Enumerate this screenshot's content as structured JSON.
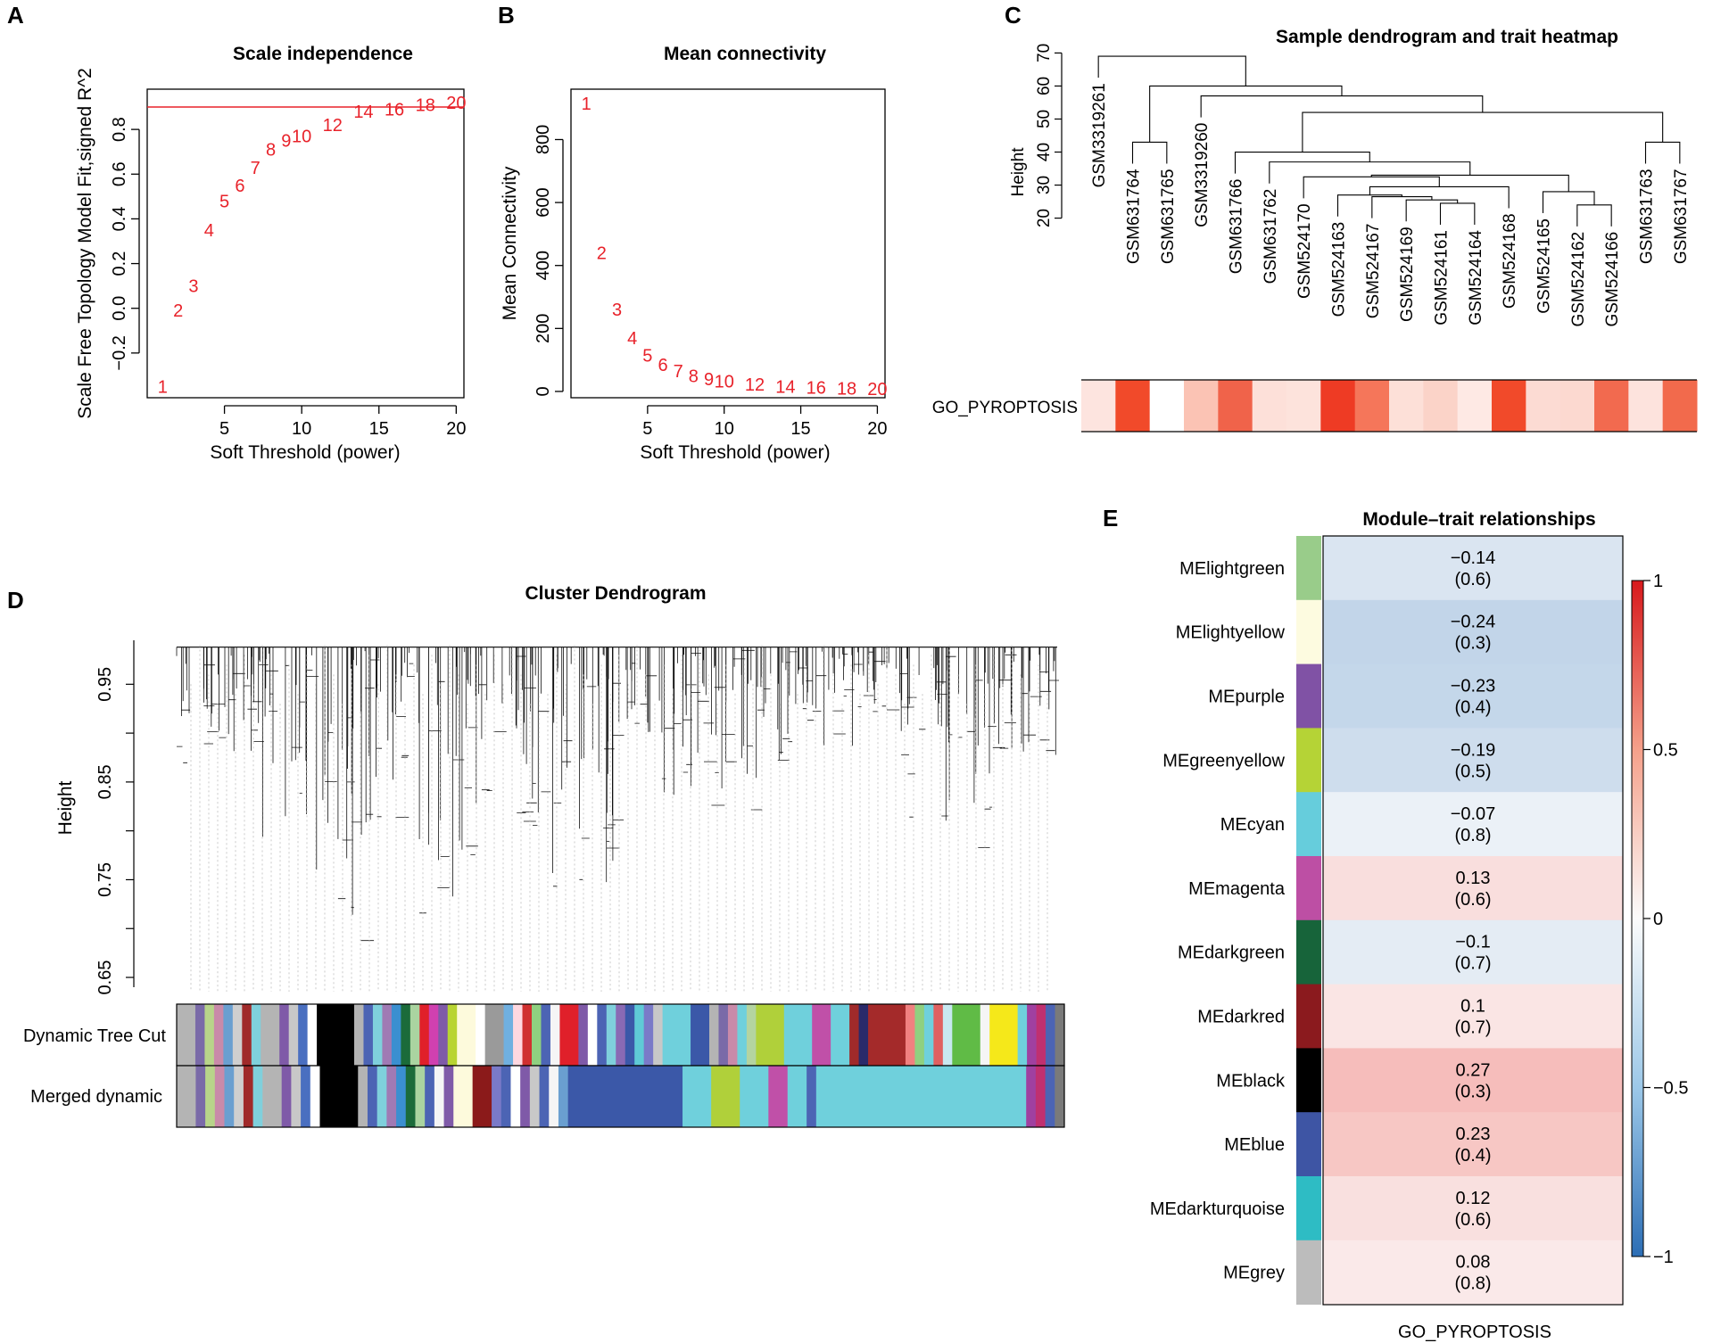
{
  "chart_data": [
    {
      "panel": "A",
      "type": "scatter",
      "title": "Scale independence",
      "xlabel": "Soft Threshold (power)",
      "ylabel": "Scale Free Topology Model Fit,signed R^2",
      "xlim": [
        0,
        20.5
      ],
      "ylim": [
        -0.4,
        0.98
      ],
      "x_ticks": [
        5,
        10,
        15,
        20
      ],
      "y_ticks": [
        -0.2,
        0.0,
        0.2,
        0.4,
        0.6,
        0.8
      ],
      "y_tick_labels": [
        "−0.2",
        "0.0",
        "0.2",
        "0.4",
        "0.6",
        "0.8"
      ],
      "cutoff_line": 0.9,
      "points": [
        {
          "label": "1",
          "x": 1,
          "y": -0.35
        },
        {
          "label": "2",
          "x": 2,
          "y": -0.01
        },
        {
          "label": "3",
          "x": 3,
          "y": 0.1
        },
        {
          "label": "4",
          "x": 4,
          "y": 0.35
        },
        {
          "label": "5",
          "x": 5,
          "y": 0.48
        },
        {
          "label": "6",
          "x": 6,
          "y": 0.55
        },
        {
          "label": "7",
          "x": 7,
          "y": 0.63
        },
        {
          "label": "8",
          "x": 8,
          "y": 0.71
        },
        {
          "label": "9",
          "x": 9,
          "y": 0.75
        },
        {
          "label": "10",
          "x": 10,
          "y": 0.77
        },
        {
          "label": "12",
          "x": 12,
          "y": 0.82
        },
        {
          "label": "14",
          "x": 14,
          "y": 0.88
        },
        {
          "label": "16",
          "x": 16,
          "y": 0.89
        },
        {
          "label": "18",
          "x": 18,
          "y": 0.91
        },
        {
          "label": "20",
          "x": 20,
          "y": 0.92
        }
      ]
    },
    {
      "panel": "B",
      "type": "scatter",
      "title": "Mean connectivity",
      "xlabel": "Soft Threshold (power)",
      "ylabel": "Mean Connectivity",
      "xlim": [
        0,
        20.5
      ],
      "ylim": [
        -20,
        960
      ],
      "x_ticks": [
        5,
        10,
        15,
        20
      ],
      "y_ticks": [
        0,
        200,
        400,
        600,
        800
      ],
      "points": [
        {
          "label": "1",
          "x": 1,
          "y": 915
        },
        {
          "label": "2",
          "x": 2,
          "y": 440
        },
        {
          "label": "3",
          "x": 3,
          "y": 260
        },
        {
          "label": "4",
          "x": 4,
          "y": 170
        },
        {
          "label": "5",
          "x": 5,
          "y": 115
        },
        {
          "label": "6",
          "x": 6,
          "y": 85
        },
        {
          "label": "7",
          "x": 7,
          "y": 65
        },
        {
          "label": "8",
          "x": 8,
          "y": 50
        },
        {
          "label": "9",
          "x": 9,
          "y": 40
        },
        {
          "label": "10",
          "x": 10,
          "y": 32
        },
        {
          "label": "12",
          "x": 12,
          "y": 22
        },
        {
          "label": "14",
          "x": 14,
          "y": 16
        },
        {
          "label": "16",
          "x": 16,
          "y": 12
        },
        {
          "label": "18",
          "x": 18,
          "y": 10
        },
        {
          "label": "20",
          "x": 20,
          "y": 8
        }
      ]
    },
    {
      "panel": "C",
      "type": "heatmap",
      "title": "Sample dendrogram and trait heatmap",
      "ylabel": "Height",
      "ylim": [
        18,
        72
      ],
      "y_ticks": [
        20,
        30,
        40,
        50,
        60,
        70
      ],
      "trait": "GO_PYROPTOSIS",
      "samples": [
        "GSM3319261",
        "GSM631764",
        "GSM631765",
        "GSM3319260",
        "GSM631766",
        "GSM631762",
        "GSM524170",
        "GSM524163",
        "GSM524167",
        "GSM524169",
        "GSM524161",
        "GSM524164",
        "GSM524168",
        "GSM524165",
        "GSM524162",
        "GSM524166",
        "GSM631763",
        "GSM631767"
      ],
      "trait_colors": [
        "#fde4df",
        "#f14a2a",
        "#ffffff",
        "#fbc3b4",
        "#f0634a",
        "#fde0d9",
        "#fde3dc",
        "#ee3b24",
        "#f5765a",
        "#fde0d8",
        "#fbd3c8",
        "#fee9e4",
        "#f14a2a",
        "#fcdbd3",
        "#fcd9d0",
        "#f26a4f",
        "#fde3dd",
        "#f26a4c"
      ],
      "merges": [
        {
          "a": 2,
          "b": 3,
          "h": 43
        },
        {
          "a": 17,
          "b": 18,
          "h": 43
        },
        {
          "a": 15,
          "b": 16,
          "h": 24
        },
        {
          "a": 14,
          "b": 21,
          "h": 28
        },
        {
          "a": 11,
          "b": 12,
          "h": 24.5
        },
        {
          "a": 10,
          "b": 23,
          "h": 25.5
        },
        {
          "a": 9,
          "b": 24,
          "h": 26.5
        },
        {
          "a": 8,
          "b": 25,
          "h": 27
        },
        {
          "a": 26,
          "b": 13,
          "h": 29.5
        },
        {
          "a": 7,
          "b": 27,
          "h": 32.5
        },
        {
          "a": 28,
          "b": 22,
          "h": 33
        },
        {
          "a": 6,
          "b": 29,
          "h": 37
        },
        {
          "a": 5,
          "b": 30,
          "h": 40
        },
        {
          "a": 31,
          "b": 20,
          "h": 52
        },
        {
          "a": 4,
          "b": 32,
          "h": 57
        },
        {
          "a": 19,
          "b": 33,
          "h": 60
        },
        {
          "a": 1,
          "b": 34,
          "h": 69
        }
      ]
    },
    {
      "panel": "D",
      "type": "other",
      "title": "Cluster Dendrogram",
      "ylabel": "Height",
      "ylim": [
        0.64,
        0.995
      ],
      "y_ticks": [
        0.65,
        0.75,
        0.85,
        0.95
      ],
      "color_rows": [
        {
          "label": "Dynamic Tree Cut",
          "segments": [
            [
              "#b4b4b4",
              2
            ],
            [
              "#7a6aa8",
              1
            ],
            [
              "#b8d48a",
              1
            ],
            [
              "#c98aa9",
              1
            ],
            [
              "#6a9fd0",
              1
            ],
            [
              "#cfcfcf",
              1
            ],
            [
              "#a02a2a",
              1
            ],
            [
              "#7fd0dc",
              1
            ],
            [
              "#b4b4b4",
              2
            ],
            [
              "#7f5aa8",
              1
            ],
            [
              "#c8c8c8",
              1
            ],
            [
              "#4a6fc0",
              1
            ],
            [
              "#ffffff",
              1
            ],
            [
              "#000000",
              4
            ],
            [
              "#b4b4b4",
              1
            ],
            [
              "#4c64b4",
              1
            ],
            [
              "#7fd0dc",
              1
            ],
            [
              "#a07ab4",
              1
            ],
            [
              "#3b8fd0",
              1
            ],
            [
              "#1b6b3a",
              1
            ],
            [
              "#aad4a0",
              1
            ],
            [
              "#e0202a",
              1
            ],
            [
              "#d040b0",
              1
            ],
            [
              "#7f5aa8",
              1
            ],
            [
              "#b8d432",
              1
            ],
            [
              "#fdfadc",
              2
            ],
            [
              "#ffffff",
              1
            ],
            [
              "#9a9a9a",
              2
            ],
            [
              "#70b0e0",
              1
            ],
            [
              "#ffd8e0",
              1
            ],
            [
              "#d03030",
              1
            ],
            [
              "#8fd080",
              1
            ],
            [
              "#4c64b4",
              1
            ],
            [
              "#f5f5f5",
              1
            ],
            [
              "#e0202a",
              2
            ],
            [
              "#7f5aa8",
              1
            ],
            [
              "#ffffff",
              1
            ],
            [
              "#4c64b4",
              1
            ],
            [
              "#7fd0dc",
              1
            ],
            [
              "#8a6ab4",
              1
            ],
            [
              "#3b58a8",
              1
            ],
            [
              "#5fcad6",
              1
            ],
            [
              "#7a7ac8",
              1
            ],
            [
              "#c8c8c8",
              1
            ],
            [
              "#6fd0dc",
              3
            ],
            [
              "#3b58a8",
              2
            ],
            [
              "#b4b4b4",
              1
            ],
            [
              "#7a6aa8",
              1
            ],
            [
              "#c98aa9",
              1
            ],
            [
              "#6fd0dc",
              1
            ],
            [
              "#b4d4a0",
              1
            ],
            [
              "#b0d03a",
              3
            ],
            [
              "#6fd0dc",
              3
            ],
            [
              "#c050a8",
              2
            ],
            [
              "#6fd0dc",
              2
            ],
            [
              "#a02a2a",
              1
            ],
            [
              "#2a2a6a",
              1
            ],
            [
              "#a42a2a",
              4
            ],
            [
              "#f08080",
              1
            ],
            [
              "#8fd080",
              1
            ],
            [
              "#6fd0dc",
              1
            ],
            [
              "#e06060",
              1
            ],
            [
              "#c8e8f0",
              1
            ],
            [
              "#60bb46",
              3
            ],
            [
              "#f5f5f5",
              1
            ],
            [
              "#f5e81a",
              3
            ],
            [
              "#6fd0dc",
              1
            ],
            [
              "#a040a0",
              1
            ],
            [
              "#c03070",
              1
            ],
            [
              "#4c64b4",
              1
            ],
            [
              "#7a7a7a",
              1
            ]
          ]
        },
        {
          "label": "Merged dynamic",
          "segments": [
            [
              "#b4b4b4",
              2
            ],
            [
              "#7a6aa8",
              1
            ],
            [
              "#b8d48a",
              1
            ],
            [
              "#c98aa9",
              1
            ],
            [
              "#6a9fd0",
              1
            ],
            [
              "#cfcfcf",
              1
            ],
            [
              "#a02a2a",
              1
            ],
            [
              "#7fd0dc",
              1
            ],
            [
              "#b4b4b4",
              2
            ],
            [
              "#7f5aa8",
              1
            ],
            [
              "#c8c8c8",
              1
            ],
            [
              "#4a6fc0",
              1
            ],
            [
              "#ffffff",
              1
            ],
            [
              "#000000",
              4
            ],
            [
              "#b4b4b4",
              1
            ],
            [
              "#4c64b4",
              1
            ],
            [
              "#7fd0dc",
              1
            ],
            [
              "#a07ab4",
              1
            ],
            [
              "#3b8fd0",
              1
            ],
            [
              "#1b6b3a",
              1
            ],
            [
              "#aad4a0",
              1
            ],
            [
              "#4c64b4",
              1
            ],
            [
              "#f5f5f5",
              1
            ],
            [
              "#7f5aa8",
              1
            ],
            [
              "#fdfadc",
              2
            ],
            [
              "#8b1a1a",
              2
            ],
            [
              "#7a7ac8",
              1
            ],
            [
              "#4c64b4",
              1
            ],
            [
              "#ffffff",
              1
            ],
            [
              "#7f5aa8",
              1
            ],
            [
              "#c8c8c8",
              1
            ],
            [
              "#4c64b4",
              1
            ],
            [
              "#f5f5f5",
              1
            ],
            [
              "#6a9fd0",
              1
            ],
            [
              "#3b58a8",
              12
            ],
            [
              "#6fd0dc",
              3
            ],
            [
              "#b0d03a",
              3
            ],
            [
              "#6fd0dc",
              3
            ],
            [
              "#c050a8",
              2
            ],
            [
              "#6fd0dc",
              2
            ],
            [
              "#4c64b4",
              1
            ],
            [
              "#6fd0dc",
              22
            ],
            [
              "#a040a0",
              1
            ],
            [
              "#c03070",
              1
            ],
            [
              "#4c64b4",
              1
            ],
            [
              "#7a7a7a",
              1
            ]
          ]
        }
      ]
    },
    {
      "panel": "E",
      "type": "heatmap",
      "title": "Module–trait relationships",
      "xlabel": "GO_PYROPTOSIS",
      "colorbar_ticks": [
        {
          "value": 1,
          "label": "1"
        },
        {
          "value": 0.5,
          "label": "0.5"
        },
        {
          "value": 0,
          "label": "0"
        },
        {
          "value": -0.5,
          "label": "−0.5"
        },
        {
          "value": -1,
          "label": "−1"
        }
      ],
      "rows": [
        {
          "module": "MElightgreen",
          "color": "#99cc8a",
          "corr": -0.14,
          "corr_label": "−0.14",
          "pvalue": "(0.6)"
        },
        {
          "module": "MElightyellow",
          "color": "#fdfbe0",
          "corr": -0.24,
          "corr_label": "−0.24",
          "pvalue": "(0.3)"
        },
        {
          "module": "MEpurple",
          "color": "#8052a5",
          "corr": -0.23,
          "corr_label": "−0.23",
          "pvalue": "(0.4)"
        },
        {
          "module": "MEgreenyellow",
          "color": "#b5d336",
          "corr": -0.19,
          "corr_label": "−0.19",
          "pvalue": "(0.5)"
        },
        {
          "module": "MEcyan",
          "color": "#66cddc",
          "corr": -0.07,
          "corr_label": "−0.07",
          "pvalue": "(0.8)"
        },
        {
          "module": "MEmagenta",
          "color": "#bd4fa4",
          "corr": 0.13,
          "corr_label": "0.13",
          "pvalue": "(0.6)"
        },
        {
          "module": "MEdarkgreen",
          "color": "#17643a",
          "corr": -0.1,
          "corr_label": "−0.1",
          "pvalue": "(0.7)"
        },
        {
          "module": "MEdarkred",
          "color": "#8b1a1e",
          "corr": 0.1,
          "corr_label": "0.1",
          "pvalue": "(0.7)"
        },
        {
          "module": "MEblack",
          "color": "#000000",
          "corr": 0.27,
          "corr_label": "0.27",
          "pvalue": "(0.3)"
        },
        {
          "module": "MEblue",
          "color": "#3e55a4",
          "corr": 0.23,
          "corr_label": "0.23",
          "pvalue": "(0.4)"
        },
        {
          "module": "MEdarkturquoise",
          "color": "#2ebcc4",
          "corr": 0.12,
          "corr_label": "0.12",
          "pvalue": "(0.6)"
        },
        {
          "module": "MEgrey",
          "color": "#bcbcbc",
          "corr": 0.08,
          "corr_label": "0.08",
          "pvalue": "(0.8)"
        }
      ]
    }
  ],
  "panel_letters": {
    "a": "A",
    "b": "B",
    "c": "C",
    "d": "D",
    "e": "E"
  },
  "colors": {
    "point": "#e8222a",
    "cutoff": "#e8222a",
    "axis": "#000000",
    "neg": "#2a6fb8",
    "pos": "#e8322a"
  }
}
